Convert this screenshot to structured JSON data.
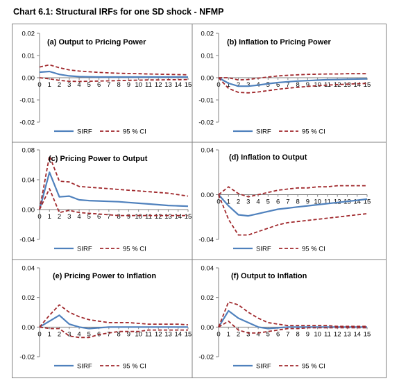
{
  "title": "Chart 6.1: Structural IRFs for one SD shock - NFMP",
  "colors": {
    "sirf": "#4f81bd",
    "ci": "#a0282c",
    "axis": "#808080",
    "border": "#808080"
  },
  "chart_data": [
    {
      "type": "line",
      "title": "(a) Output to Pricing Power",
      "x": [
        0,
        1,
        2,
        3,
        4,
        5,
        6,
        7,
        8,
        9,
        10,
        11,
        12,
        13,
        14,
        15
      ],
      "ylim": [
        -0.02,
        0.02
      ],
      "yticks": [
        "0.02",
        "0.01",
        "0.00",
        "-0.01",
        "-0.02"
      ],
      "ytick_values": [
        0.02,
        0.01,
        0.0,
        -0.01,
        -0.02
      ],
      "series": [
        {
          "name": "SIRF",
          "values": [
            0.0025,
            0.0028,
            0.0015,
            0.0008,
            0.0005,
            0.0004,
            0.0003,
            0.0003,
            0.0003,
            0.0003,
            0.0003,
            0.0003,
            0.0003,
            0.0003,
            0.0003,
            0.0003
          ]
        },
        {
          "name": "95 % CI",
          "values": [
            0.0048,
            0.0058,
            0.0045,
            0.0035,
            0.003,
            0.0027,
            0.0024,
            0.0022,
            0.002,
            0.0019,
            0.0018,
            0.0017,
            0.0016,
            0.0015,
            0.0014,
            0.0013
          ]
        },
        {
          "name": "95 % CI lower",
          "values": [
            0.0,
            -0.0005,
            -0.0012,
            -0.0016,
            -0.0017,
            -0.0016,
            -0.0015,
            -0.0014,
            -0.0013,
            -0.0012,
            -0.0011,
            -0.001,
            -0.001,
            -0.0009,
            -0.0009,
            -0.0008
          ]
        }
      ]
    },
    {
      "type": "line",
      "title": "(b) Inflation to Pricing Power",
      "x": [
        0,
        1,
        2,
        3,
        4,
        5,
        6,
        7,
        8,
        9,
        10,
        11,
        12,
        13,
        14,
        15
      ],
      "ylim": [
        -0.02,
        0.02
      ],
      "yticks": [
        "0.02",
        "0.01",
        "0.00",
        "-0.01",
        "-0.02"
      ],
      "ytick_values": [
        0.02,
        0.01,
        0.0,
        -0.01,
        -0.02
      ],
      "series": [
        {
          "name": "SIRF",
          "values": [
            0.0,
            -0.0025,
            -0.0038,
            -0.0038,
            -0.0033,
            -0.0027,
            -0.0022,
            -0.0018,
            -0.0015,
            -0.0013,
            -0.0011,
            -0.0009,
            -0.0008,
            -0.0007,
            -0.0006,
            -0.0005
          ]
        },
        {
          "name": "95 % CI",
          "values": [
            0.0,
            0.0,
            -0.001,
            -0.0008,
            -0.0002,
            0.0003,
            0.0008,
            0.0011,
            0.0013,
            0.0015,
            0.0016,
            0.0017,
            0.0017,
            0.0018,
            0.0018,
            0.0018
          ]
        },
        {
          "name": "95 % CI lower",
          "values": [
            0.0,
            -0.0048,
            -0.0066,
            -0.0068,
            -0.0064,
            -0.0058,
            -0.0052,
            -0.0047,
            -0.0043,
            -0.0039,
            -0.0036,
            -0.0033,
            -0.0031,
            -0.0029,
            -0.0027,
            -0.0026
          ]
        }
      ]
    },
    {
      "type": "line",
      "title": "(c) Pricing Power to Output",
      "x": [
        0,
        1,
        2,
        3,
        4,
        5,
        6,
        7,
        8,
        9,
        10,
        11,
        12,
        13,
        14,
        15
      ],
      "ylim": [
        -0.04,
        0.08
      ],
      "yticks": [
        "0.08",
        "0.04",
        "0.00",
        "-0.04"
      ],
      "ytick_values": [
        0.08,
        0.04,
        0.0,
        -0.04
      ],
      "series": [
        {
          "name": "SIRF",
          "values": [
            0.0,
            0.05,
            0.017,
            0.018,
            0.013,
            0.012,
            0.0115,
            0.011,
            0.0105,
            0.0095,
            0.0085,
            0.0075,
            0.0065,
            0.0055,
            0.005,
            0.0045
          ]
        },
        {
          "name": "95 % CI",
          "values": [
            0.0,
            0.072,
            0.038,
            0.037,
            0.031,
            0.03,
            0.029,
            0.028,
            0.027,
            0.026,
            0.025,
            0.024,
            0.023,
            0.022,
            0.02,
            0.018
          ]
        },
        {
          "name": "95 % CI lower",
          "values": [
            0.0,
            0.028,
            -0.004,
            -0.001,
            -0.004,
            -0.005,
            -0.006,
            -0.007,
            -0.008,
            -0.008,
            -0.008,
            -0.008,
            -0.008,
            -0.008,
            -0.008,
            -0.008
          ]
        }
      ]
    },
    {
      "type": "line",
      "title": "(d) Inflation to Output",
      "x": [
        0,
        1,
        2,
        3,
        4,
        5,
        6,
        7,
        8,
        9,
        10,
        11,
        12,
        13,
        14,
        15
      ],
      "ylim": [
        -0.04,
        0.04
      ],
      "yticks": [
        "0.04",
        "0.00",
        "-0.04"
      ],
      "ytick_values": [
        0.04,
        0.0,
        -0.04
      ],
      "series": [
        {
          "name": "SIRF",
          "values": [
            0.0,
            -0.01,
            -0.018,
            -0.019,
            -0.017,
            -0.015,
            -0.013,
            -0.012,
            -0.011,
            -0.01,
            -0.009,
            -0.008,
            -0.007,
            -0.006,
            -0.005,
            -0.004
          ]
        },
        {
          "name": "95 % CI",
          "values": [
            0.0,
            0.007,
            0.001,
            -0.002,
            0.0,
            0.002,
            0.004,
            0.005,
            0.006,
            0.006,
            0.007,
            0.007,
            0.008,
            0.008,
            0.008,
            0.008
          ]
        },
        {
          "name": "95 % CI lower",
          "values": [
            0.0,
            -0.022,
            -0.036,
            -0.036,
            -0.033,
            -0.03,
            -0.027,
            -0.025,
            -0.024,
            -0.023,
            -0.022,
            -0.021,
            -0.02,
            -0.019,
            -0.018,
            -0.017
          ]
        }
      ]
    },
    {
      "type": "line",
      "title": "(e) Pricing Power to Inflation",
      "x": [
        0,
        1,
        2,
        3,
        4,
        5,
        6,
        7,
        8,
        9,
        10,
        11,
        12,
        13,
        14,
        15
      ],
      "ylim": [
        -0.02,
        0.04
      ],
      "yticks": [
        "0.04",
        "0.02",
        "0.00",
        "-0.02"
      ],
      "ytick_values": [
        0.04,
        0.02,
        0.0,
        -0.02
      ],
      "series": [
        {
          "name": "SIRF",
          "values": [
            0.0,
            0.004,
            0.008,
            0.002,
            0.0,
            -0.001,
            -0.0005,
            0.0,
            0.0,
            0.0,
            0.0,
            0.0,
            0.0,
            0.0,
            0.0,
            0.0
          ]
        },
        {
          "name": "95 % CI",
          "values": [
            0.0,
            0.008,
            0.015,
            0.01,
            0.007,
            0.005,
            0.004,
            0.003,
            0.003,
            0.003,
            0.0025,
            0.002,
            0.002,
            0.002,
            0.002,
            0.0015
          ]
        },
        {
          "name": "95 % CI lower",
          "values": [
            0.0,
            -0.001,
            -0.001,
            -0.006,
            -0.007,
            -0.007,
            -0.005,
            -0.004,
            -0.003,
            -0.003,
            -0.003,
            -0.002,
            -0.002,
            -0.002,
            -0.002,
            -0.002
          ]
        }
      ]
    },
    {
      "type": "line",
      "title": "(f) Output to Inflation",
      "x": [
        0,
        1,
        2,
        3,
        4,
        5,
        6,
        7,
        8,
        9,
        10,
        11,
        12,
        13,
        14,
        15
      ],
      "ylim": [
        -0.02,
        0.04
      ],
      "yticks": [
        "0.04",
        "0.02",
        "0.00",
        "-0.02"
      ],
      "ytick_values": [
        0.04,
        0.02,
        0.0,
        -0.02
      ],
      "series": [
        {
          "name": "SIRF",
          "values": [
            0.0,
            0.011,
            0.006,
            0.003,
            0.0,
            -0.001,
            -0.0005,
            0.0,
            0.0,
            0.0,
            0.0,
            0.0,
            0.0,
            0.0,
            0.0,
            0.0
          ]
        },
        {
          "name": "95 % CI",
          "values": [
            0.0,
            0.017,
            0.015,
            0.01,
            0.006,
            0.003,
            0.002,
            0.001,
            0.001,
            0.001,
            0.001,
            0.001,
            0.0005,
            0.0005,
            0.0005,
            0.0005
          ]
        },
        {
          "name": "95 % CI lower",
          "values": [
            0.0,
            0.004,
            -0.002,
            -0.004,
            -0.004,
            -0.003,
            -0.002,
            -0.001,
            -0.001,
            -0.0005,
            -0.0005,
            -0.0005,
            -0.0005,
            -0.0005,
            -0.0005,
            -0.0005
          ]
        }
      ]
    }
  ],
  "legend": {
    "sirf_label": "SIRF",
    "ci_label": "95 % CI"
  },
  "xtick_labels": [
    "0",
    "1",
    "2",
    "3",
    "4",
    "5",
    "6",
    "7",
    "8",
    "9",
    "10",
    "11",
    "12",
    "13",
    "14",
    "15"
  ]
}
